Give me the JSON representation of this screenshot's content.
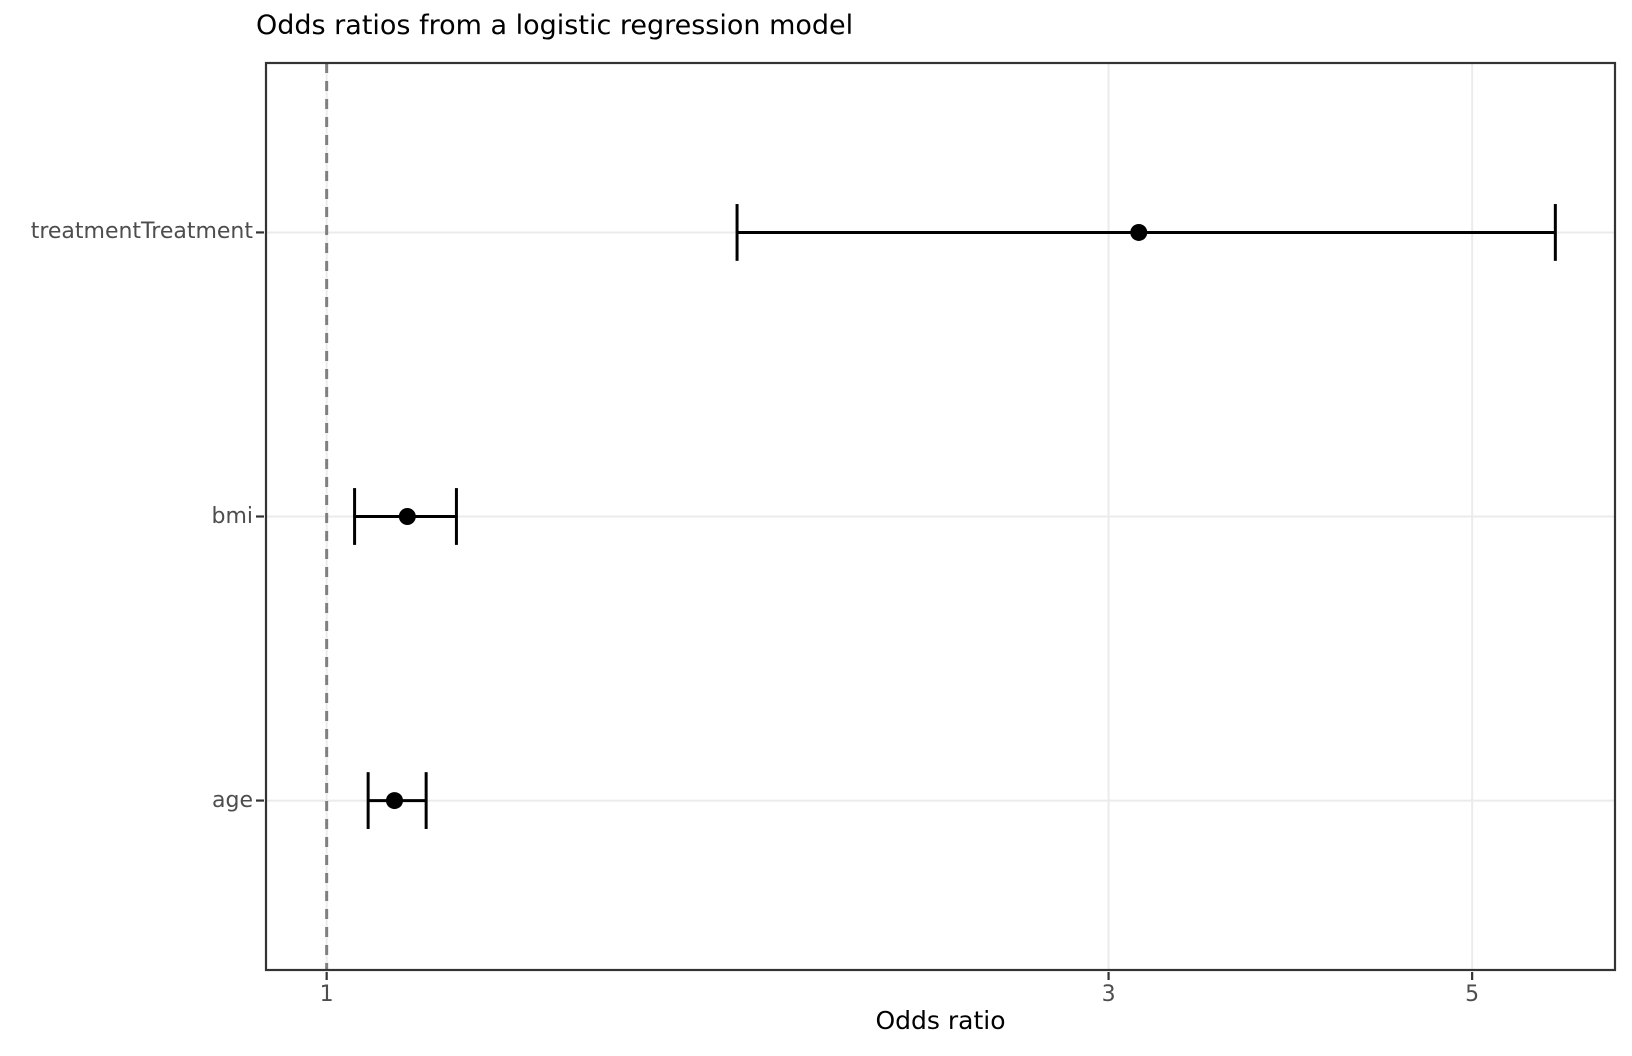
{
  "chart_data": {
    "type": "scatter",
    "subtype": "forest_plot_odds_ratios",
    "title": "Odds ratios from a logistic regression model",
    "xlabel": "Odds ratio",
    "ylabel": "",
    "x_scale": "log10",
    "xlim": [
      0.917,
      6.12
    ],
    "x_ticks": [
      1,
      3,
      5
    ],
    "grid": "major_only",
    "legend": "none",
    "reference_line": {
      "x": 1,
      "linetype": "dashed",
      "color": "#7f7f7f"
    },
    "rows": [
      {
        "label": "treatmentTreatment",
        "odds_ratio": 3.13,
        "ci_low": 1.78,
        "ci_high": 5.62
      },
      {
        "label": "bmi",
        "odds_ratio": 1.12,
        "ci_low": 1.04,
        "ci_high": 1.2
      },
      {
        "label": "age",
        "odds_ratio": 1.1,
        "ci_low": 1.06,
        "ci_high": 1.15
      }
    ],
    "colors": {
      "point": "#000000",
      "errorbar": "#000000",
      "grid": "#ebebeb",
      "panel_border": "#333333",
      "tick_mark": "#333333",
      "axis_text": "#4d4d4d",
      "title_text": "#000000",
      "axis_title_text": "#000000",
      "background": "#ffffff"
    }
  }
}
